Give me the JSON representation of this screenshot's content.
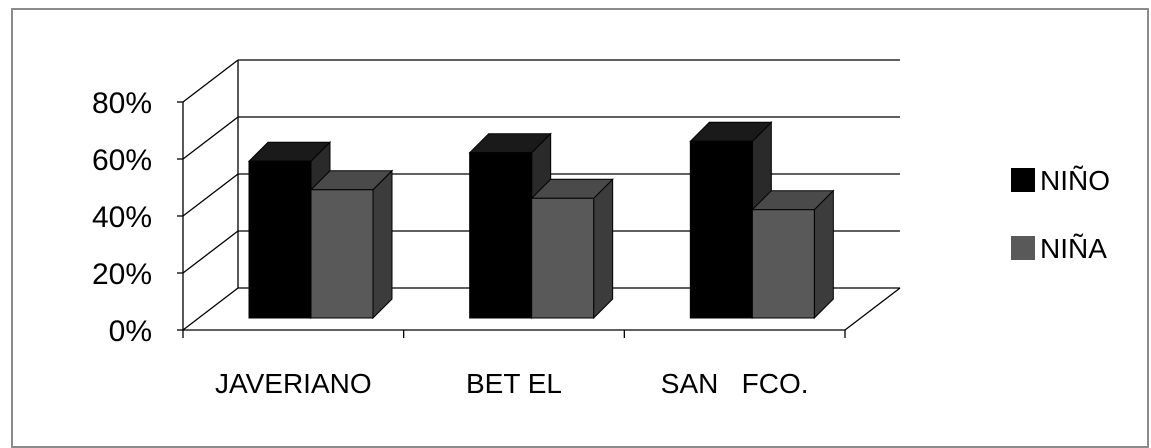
{
  "chart_data": {
    "type": "bar",
    "categories": [
      "JAVERIANO",
      "BET EL",
      "SAN   FCO."
    ],
    "series": [
      {
        "name": "NIÑO",
        "values": [
          55,
          58,
          62
        ],
        "color": "#000000"
      },
      {
        "name": "NIÑA",
        "values": [
          45,
          42,
          38
        ],
        "color": "#595959"
      }
    ],
    "y_ticks": [
      "0%",
      "20%",
      "40%",
      "60%",
      "80%"
    ],
    "ylim": [
      0,
      80
    ],
    "grid": true,
    "three_d": true,
    "legend_position": "right"
  }
}
